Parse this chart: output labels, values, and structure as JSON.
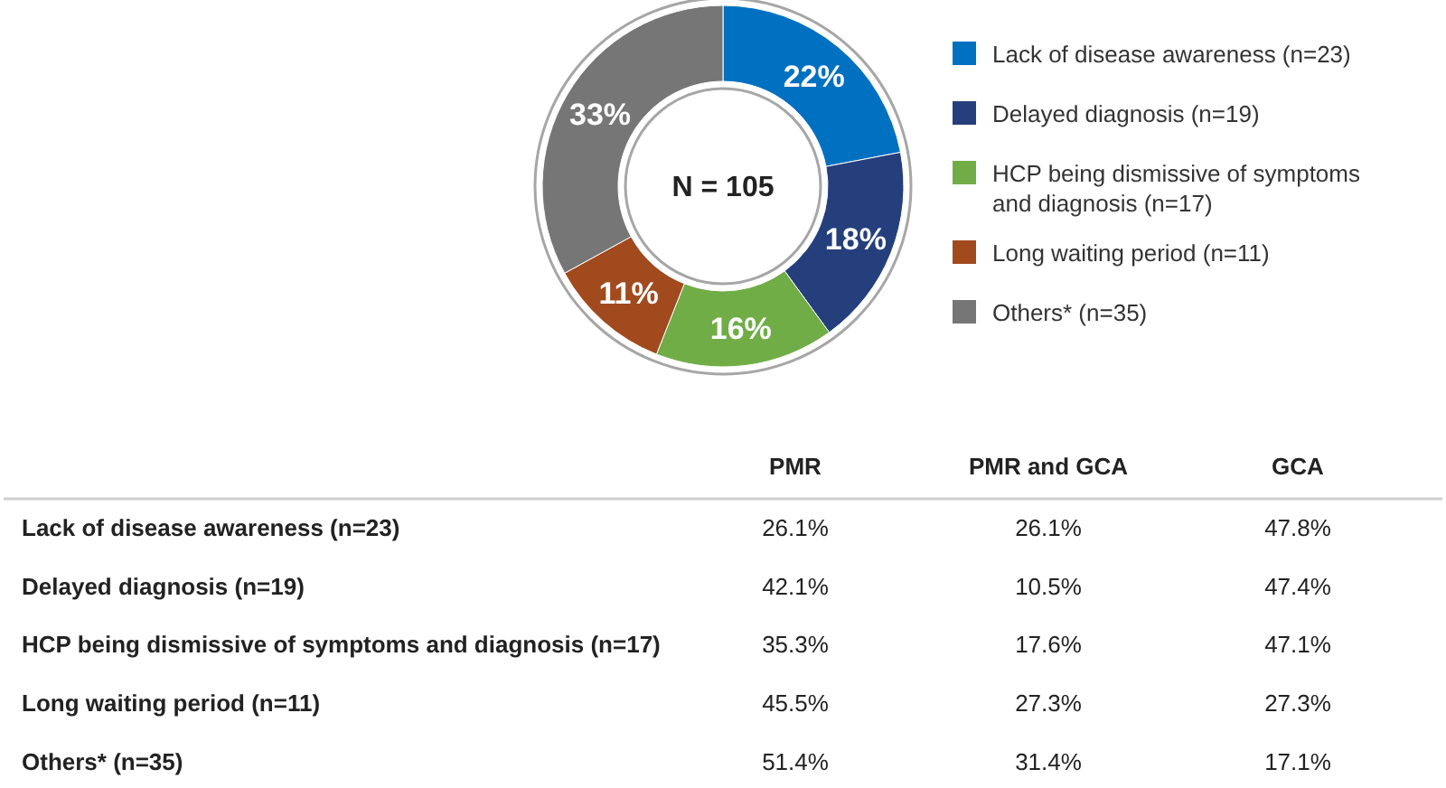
{
  "chart_data": [
    {
      "type": "donut",
      "categories": [
        "Lack of disease awareness (n=23)",
        "Delayed diagnosis (n=19)",
        "HCP being dismissive of symptoms and diagnosis (n=17)",
        "Long waiting period (n=11)",
        "Others* (n=35)"
      ],
      "values": [
        22,
        18,
        16,
        11,
        33
      ],
      "value_labels": [
        "22%",
        "18%",
        "16%",
        "11%",
        "33%"
      ],
      "colors": [
        "#0070c0",
        "#243f7c",
        "#70ad47",
        "#a04a1e",
        "#767676"
      ],
      "annotations": [
        "N = 105"
      ],
      "legend": "right"
    },
    {
      "type": "heatmap",
      "categories": [
        "PMR",
        "PMR and GCA",
        "GCA"
      ],
      "y_categories": [
        "Lack of disease awareness (n=23)",
        "Delayed diagnosis (n=19)",
        "HCP being dismissive of symptoms and diagnosis (n=17)",
        "Long waiting period (n=11)",
        "Others* (n=35)"
      ],
      "cells": [
        [
          26.1,
          26.1,
          47.8
        ],
        [
          42.1,
          10.5,
          47.4
        ],
        [
          35.3,
          17.6,
          47.1
        ],
        [
          45.5,
          27.3,
          27.3
        ],
        [
          51.4,
          31.4,
          17.1
        ]
      ],
      "cell_labels": [
        [
          "26.1%",
          "26.1%",
          "47.8%"
        ],
        [
          "42.1%",
          "10.5%",
          "47.4%"
        ],
        [
          "35.3%",
          "17.6%",
          "47.1%"
        ],
        [
          "45.5%",
          "27.3%",
          "27.3%"
        ],
        [
          "51.4%",
          "31.4%",
          "17.1%"
        ]
      ]
    }
  ]
}
